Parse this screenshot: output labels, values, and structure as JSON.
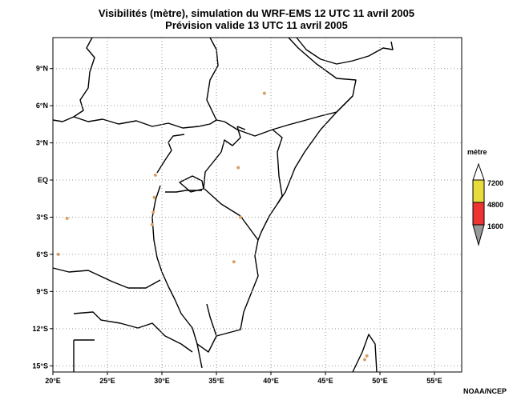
{
  "title": {
    "line1": "Visibilités (mètre), simulation du WRF-EMS 12 UTC 11 avril 2005",
    "line2": "Prévision valide 13 UTC 11 avril 2005"
  },
  "map": {
    "lon_range": [
      20,
      57.5
    ],
    "lat_range": [
      -15.5,
      11.5
    ],
    "lon_ticks": [
      {
        "value": 20,
        "label": "20°E"
      },
      {
        "value": 25,
        "label": "25°E"
      },
      {
        "value": 30,
        "label": "30°E"
      },
      {
        "value": 35,
        "label": "35°E"
      },
      {
        "value": 40,
        "label": "40°E"
      },
      {
        "value": 45,
        "label": "45°E"
      },
      {
        "value": 50,
        "label": "50°E"
      },
      {
        "value": 55,
        "label": "55°E"
      }
    ],
    "lat_ticks": [
      {
        "value": 9,
        "label": "9°N"
      },
      {
        "value": 6,
        "label": "6°N"
      },
      {
        "value": 3,
        "label": "3°N"
      },
      {
        "value": 0,
        "label": "EQ"
      },
      {
        "value": -3,
        "label": "3°S"
      },
      {
        "value": -6,
        "label": "6°S"
      },
      {
        "value": -9,
        "label": "9°S"
      },
      {
        "value": -12,
        "label": "12°S"
      },
      {
        "value": -15,
        "label": "15°S"
      }
    ],
    "grid": true,
    "grid_style": "dotted"
  },
  "legend": {
    "title": "mètre",
    "labels": [
      "7200",
      "4800",
      "1600"
    ],
    "colors": [
      "#e8dc3c",
      "#ee3333",
      "#999999"
    ]
  },
  "visibility_spots": [
    {
      "lon": 37.0,
      "lat": 1.0
    },
    {
      "lon": 37.2,
      "lat": -3.0
    },
    {
      "lon": 36.6,
      "lat": -6.6
    },
    {
      "lon": 29.3,
      "lat": -1.4
    },
    {
      "lon": 29.2,
      "lat": -2.6
    },
    {
      "lon": 29.1,
      "lat": -3.6
    },
    {
      "lon": 29.4,
      "lat": 0.4
    },
    {
      "lon": 21.3,
      "lat": -3.1
    },
    {
      "lon": 20.5,
      "lat": -6.0
    },
    {
      "lon": 48.8,
      "lat": -14.2
    },
    {
      "lon": 48.6,
      "lat": -14.5
    },
    {
      "lon": 39.4,
      "lat": 7.0
    }
  ],
  "credit": "NOAA/NCEP"
}
